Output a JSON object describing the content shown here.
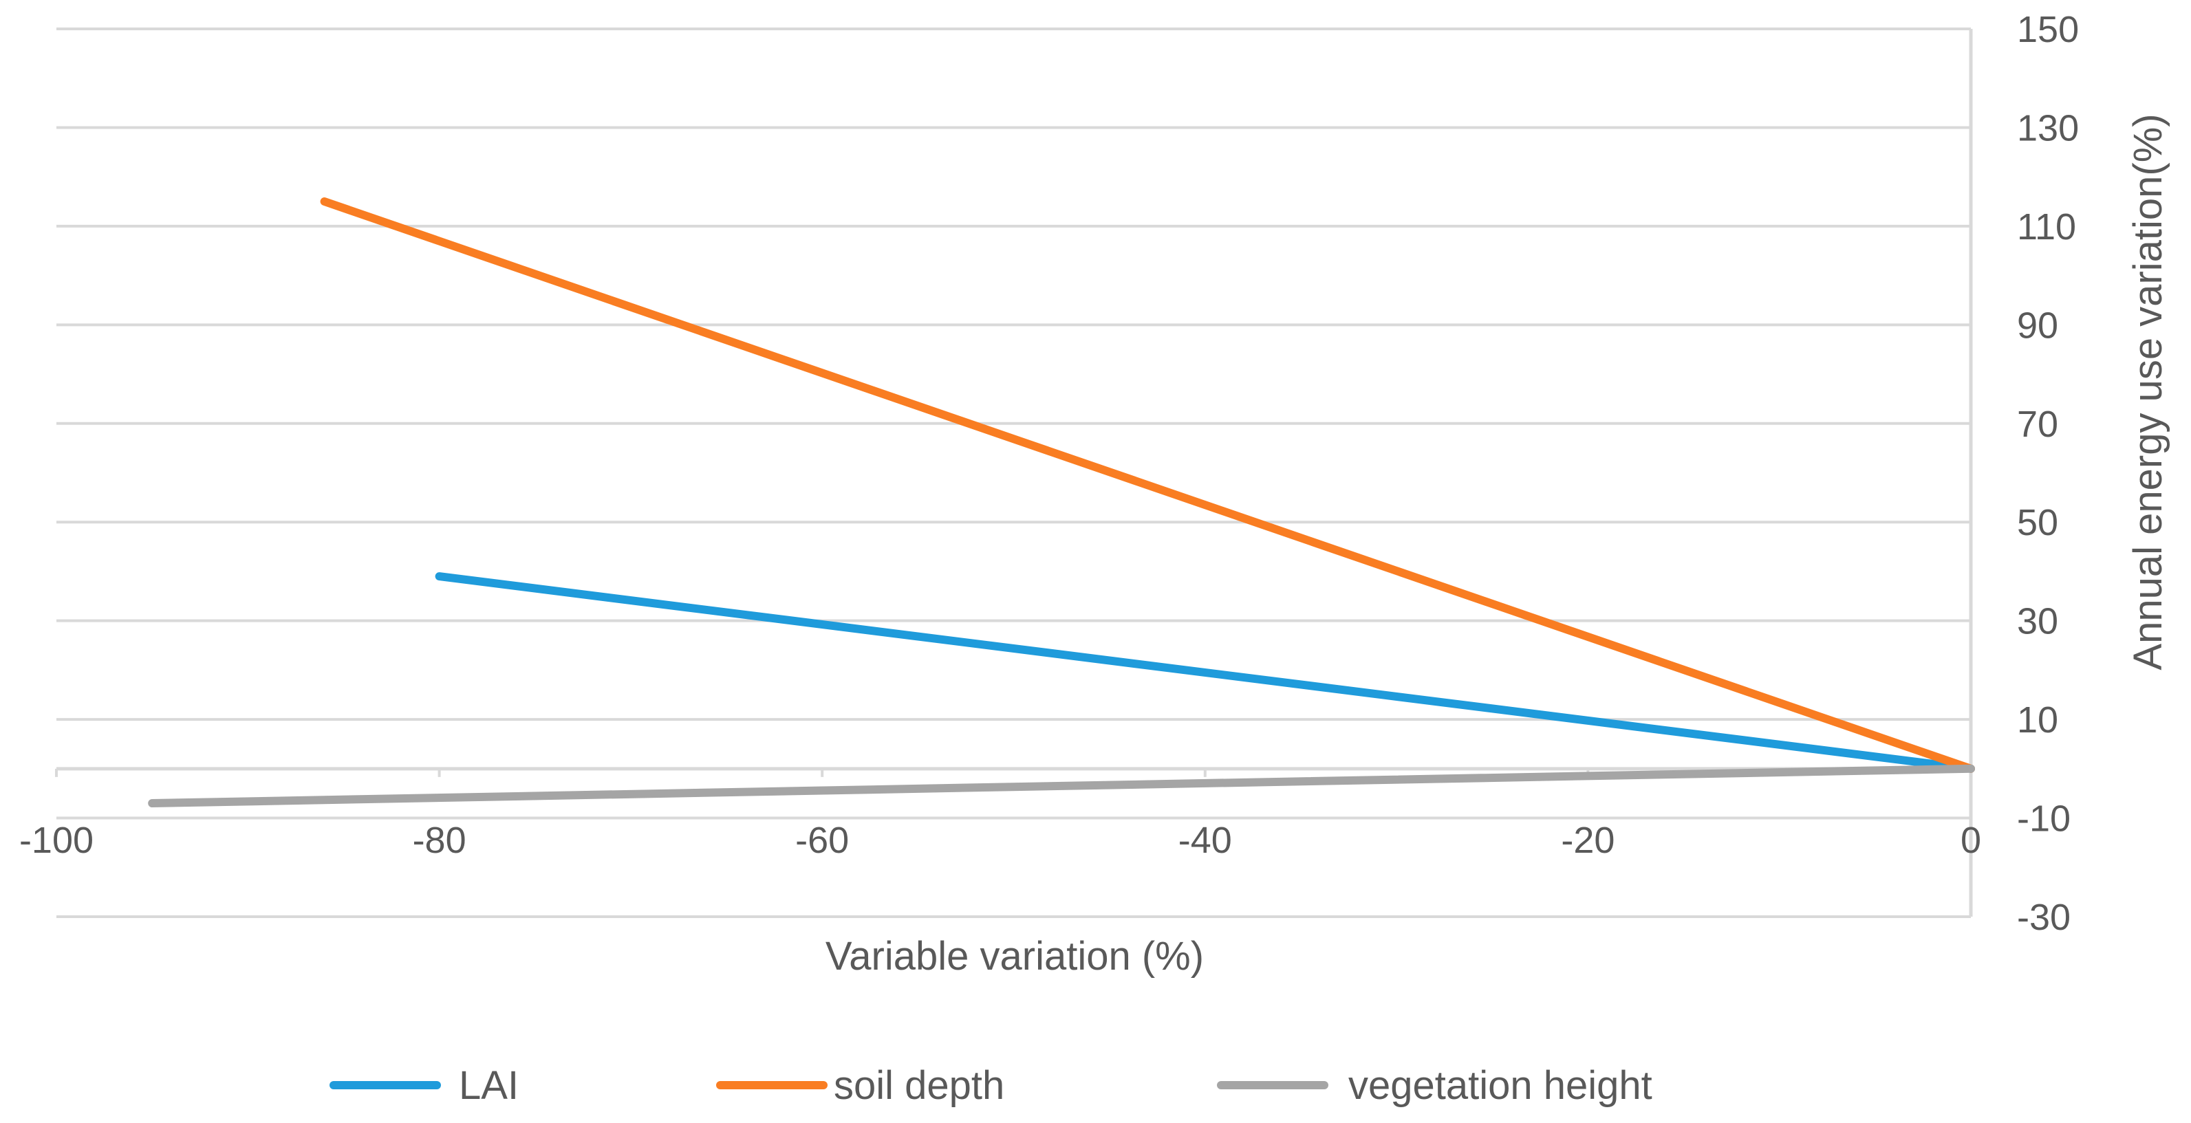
{
  "chart_data": {
    "type": "line",
    "title": "",
    "xlabel": "Variable variation (%)",
    "ylabel": "Annual energy use variation(%)",
    "xlim": [
      -100,
      0
    ],
    "ylim": [
      -30,
      150
    ],
    "x_ticks": [
      -100,
      -80,
      -60,
      -40,
      -20,
      0
    ],
    "x_tick_labels": [
      "-100",
      "-80",
      "-60",
      "-40",
      "-20",
      "0"
    ],
    "y_ticks": [
      150,
      130,
      110,
      90,
      70,
      50,
      30,
      10,
      -10,
      -30
    ],
    "y_tick_labels": [
      "150",
      "130",
      "110",
      "90",
      "70",
      "50",
      "30",
      "10",
      "-10",
      "-30"
    ],
    "x_axis_crosses_y": 0,
    "y_axis_position": "right",
    "gridlines": "horizontal",
    "legend_position": "bottom",
    "series": [
      {
        "name": "LAI",
        "color": "#1F9BDB",
        "points": [
          [
            -80,
            39
          ],
          [
            0,
            0
          ]
        ]
      },
      {
        "name": "soil depth",
        "color": "#F97D22",
        "points": [
          [
            -86,
            115
          ],
          [
            0,
            0
          ]
        ]
      },
      {
        "name": "vegetation height",
        "color": "#A5A5A5",
        "points": [
          [
            -95,
            -7
          ],
          [
            0,
            0
          ]
        ]
      }
    ]
  }
}
